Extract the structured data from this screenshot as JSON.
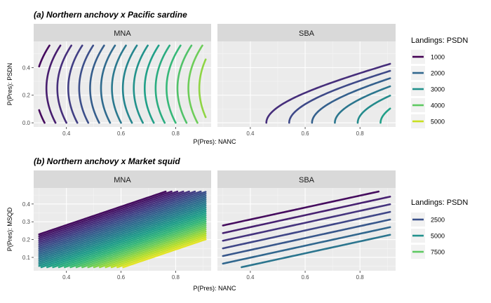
{
  "chart_data": [
    {
      "type": "contour",
      "title": "(a) Northern anchovy x Pacific sardine",
      "xlabel": "P(Pres): NANC",
      "ylabel": "P(Pres): PSDN",
      "panels": [
        "MNA",
        "SBA"
      ],
      "xlim": [
        0.28,
        0.93
      ],
      "ylim": [
        -0.03,
        0.59
      ],
      "xticks": [
        0.4,
        0.6,
        0.8
      ],
      "yticks": [
        0.0,
        0.2,
        0.4
      ],
      "grid": true,
      "legend": {
        "title": "Landings: PSDN",
        "position": "right",
        "entries": [
          {
            "label": "1000",
            "color": "#440154"
          },
          {
            "label": "2000",
            "color": "#31688e"
          },
          {
            "label": "3000",
            "color": "#21918c"
          },
          {
            "label": "4000",
            "color": "#5ec962"
          },
          {
            "label": "5000",
            "color": "#c8e020"
          }
        ]
      },
      "series": [
        {
          "panel": "MNA",
          "vmin": 0,
          "vmax": 5600,
          "levels": [
            150,
            450,
            750,
            1050,
            1350,
            1650,
            1950,
            2250,
            2550,
            2850,
            3150,
            3450,
            3750,
            4050,
            4350,
            4650,
            4950,
            5250,
            5550
          ]
        },
        {
          "panel": "SBA",
          "vmin": 0,
          "vmax": 2300,
          "levels": [
            300,
            500,
            700,
            900,
            1100,
            1300,
            1500,
            1700,
            1900,
            2100
          ]
        }
      ]
    },
    {
      "type": "contour",
      "title": "(b) Northern anchovy x Market squid",
      "xlabel": "P(Pres): NANC",
      "ylabel": "P(Pres): MSQD",
      "panels": [
        "MNA",
        "SBA"
      ],
      "xlim": [
        0.28,
        0.93
      ],
      "ylim": [
        0.025,
        0.49
      ],
      "xticks": [
        0.4,
        0.6,
        0.8
      ],
      "yticks": [
        0.1,
        0.2,
        0.3,
        0.4
      ],
      "grid": true,
      "legend": {
        "title": "Landings: PSDN",
        "position": "right",
        "entries": [
          {
            "label": "2500",
            "color": "#3b528b"
          },
          {
            "label": "5000",
            "color": "#21918c"
          },
          {
            "label": "7500",
            "color": "#5ec962"
          }
        ]
      },
      "series": [
        {
          "panel": "MNA",
          "vmin": 0,
          "vmax": 10000,
          "levels": [
            300,
            600,
            900,
            1200,
            1500,
            1800,
            2100,
            2400,
            2700,
            3000,
            3300,
            3600,
            3900,
            4200,
            4500,
            4800,
            5100,
            5400,
            5700,
            6000,
            6300,
            6600,
            6900,
            7200,
            7500,
            7800,
            8100,
            8400,
            8700,
            9000,
            9300,
            9600
          ]
        },
        {
          "panel": "SBA",
          "vmin": 0,
          "vmax": 10000,
          "levels": [
            300,
            900,
            1500,
            2100,
            2700,
            3300,
            3900
          ]
        }
      ]
    }
  ]
}
